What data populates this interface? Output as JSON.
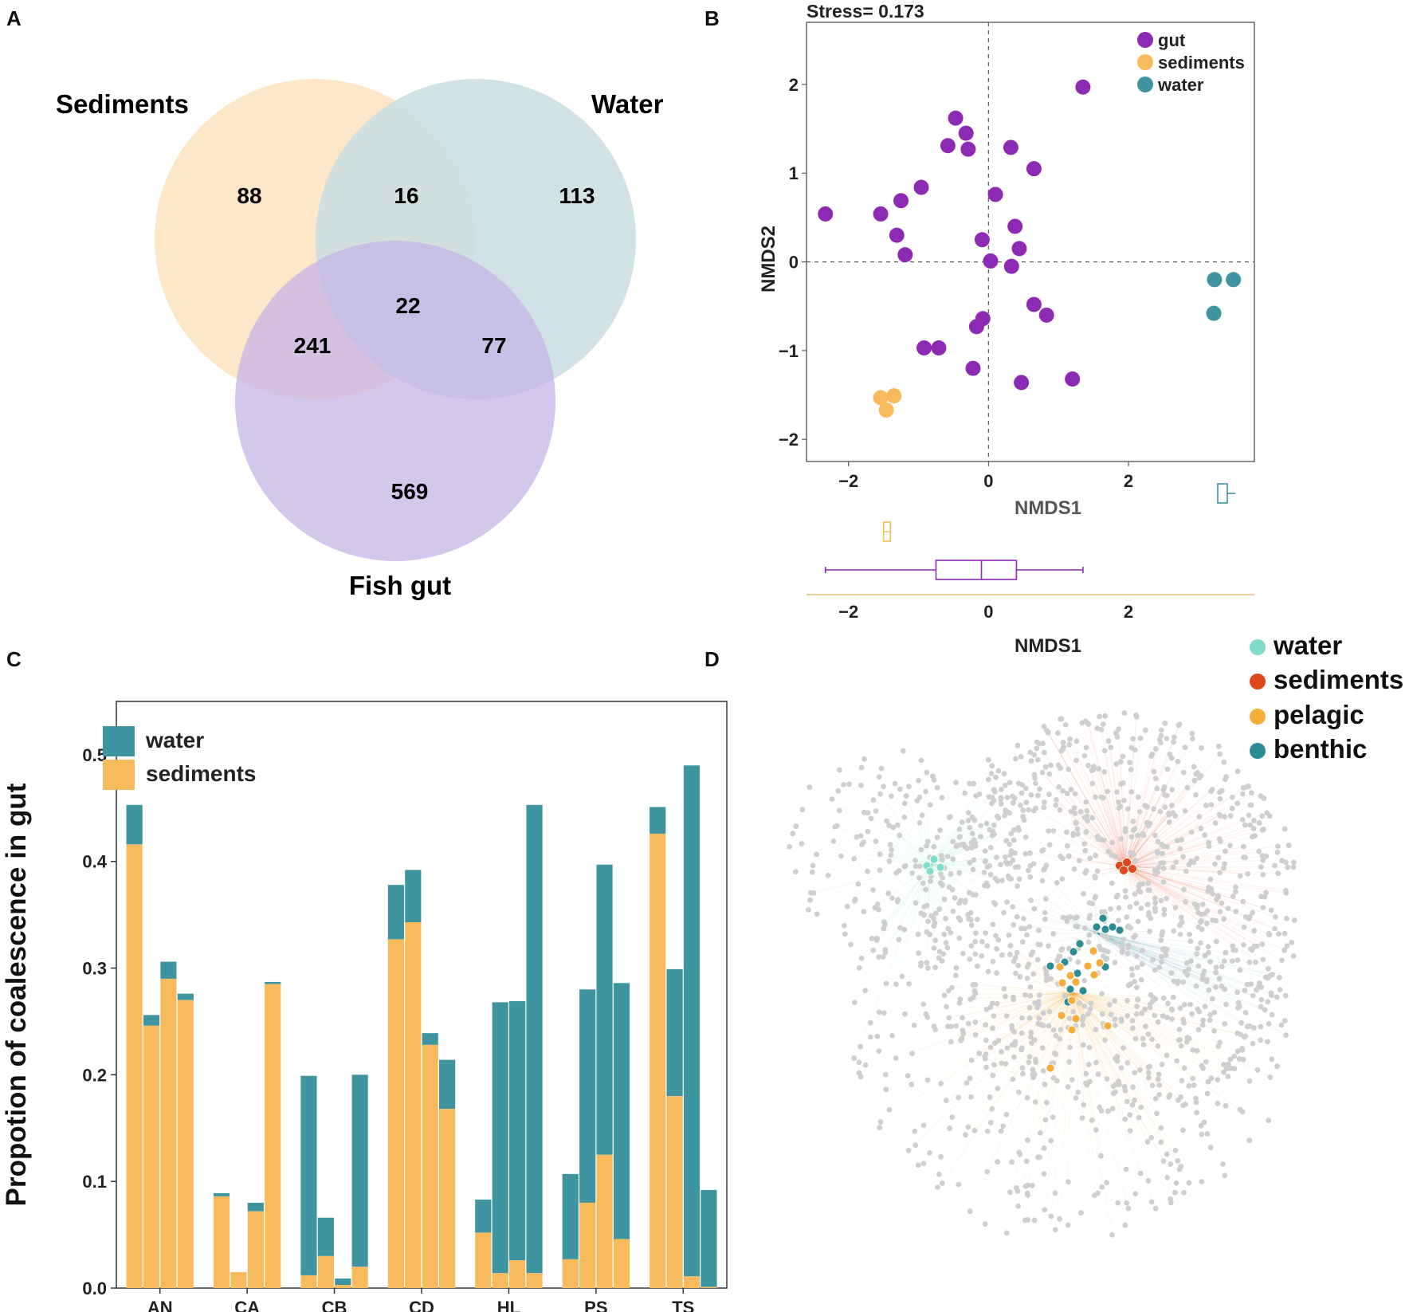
{
  "colors": {
    "sediments": "#f7bb5d",
    "water": "#3e959f",
    "gut": "#8d2ab3",
    "venn_sediments": "#fde3c0",
    "venn_water": "#c9dde3",
    "venn_gut": "#c4b4e6",
    "net_water": "#7fdccd",
    "net_sediments": "#e0471b",
    "net_pelagic": "#f5ad3b",
    "net_benthic": "#2b8c96",
    "node_grey": "#cfcfcf"
  },
  "panel_labels": {
    "a": "A",
    "b": "B",
    "c": "C",
    "d": "D"
  },
  "chart_data": [
    {
      "type": "venn",
      "panel": "A",
      "sets": [
        "Sediments",
        "Water",
        "Fish gut"
      ],
      "regions": [
        {
          "sets": [
            "Sediments"
          ],
          "value": 88
        },
        {
          "sets": [
            "Sediments",
            "Water"
          ],
          "value": 16
        },
        {
          "sets": [
            "Water"
          ],
          "value": 113
        },
        {
          "sets": [
            "Sediments",
            "Water",
            "Fish gut"
          ],
          "value": 22
        },
        {
          "sets": [
            "Sediments",
            "Fish gut"
          ],
          "value": 241
        },
        {
          "sets": [
            "Water",
            "Fish gut"
          ],
          "value": 77
        },
        {
          "sets": [
            "Fish gut"
          ],
          "value": 569
        }
      ]
    },
    {
      "type": "scatter",
      "panel": "B",
      "title": "Stress= 0.173",
      "xlabel": "NMDS1",
      "ylabel": "NMDS2",
      "xlim": [
        -2.6,
        3.8
      ],
      "ylim": [
        -2.25,
        2.7
      ],
      "xticks": [
        "−2",
        "0",
        "2"
      ],
      "yticks": [
        "2",
        "1",
        "0",
        "−1",
        "−2"
      ],
      "legend": [
        {
          "name": "gut",
          "color": "#8d2ab3"
        },
        {
          "name": "sediments",
          "color": "#f7bb5d"
        },
        {
          "name": "water",
          "color": "#3e959f"
        }
      ],
      "series": [
        {
          "name": "gut",
          "points": [
            [
              1.35,
              1.97
            ],
            [
              -0.47,
              1.62
            ],
            [
              -0.32,
              1.45
            ],
            [
              -0.58,
              1.31
            ],
            [
              -0.29,
              1.27
            ],
            [
              0.32,
              1.29
            ],
            [
              0.65,
              1.05
            ],
            [
              -0.96,
              0.84
            ],
            [
              -1.25,
              0.69
            ],
            [
              0.1,
              0.76
            ],
            [
              -2.33,
              0.54
            ],
            [
              -1.54,
              0.54
            ],
            [
              0.38,
              0.4
            ],
            [
              -1.31,
              0.3
            ],
            [
              -0.09,
              0.25
            ],
            [
              0.44,
              0.15
            ],
            [
              -1.19,
              0.08
            ],
            [
              0.03,
              0.01
            ],
            [
              0.33,
              -0.05
            ],
            [
              0.65,
              -0.48
            ],
            [
              0.83,
              -0.6
            ],
            [
              -0.08,
              -0.64
            ],
            [
              -0.17,
              -0.73
            ],
            [
              -0.92,
              -0.97
            ],
            [
              -0.71,
              -0.97
            ],
            [
              -0.22,
              -1.2
            ],
            [
              0.47,
              -1.36
            ],
            [
              1.2,
              -1.32
            ]
          ]
        },
        {
          "name": "sediments",
          "points": [
            [
              -1.54,
              -1.53
            ],
            [
              -1.35,
              -1.51
            ],
            [
              -1.46,
              -1.67
            ]
          ]
        },
        {
          "name": "water",
          "points": [
            [
              3.23,
              -0.2
            ],
            [
              3.5,
              -0.2
            ],
            [
              3.22,
              -0.58
            ]
          ]
        }
      ],
      "boxplots_x": [
        {
          "name": "gut",
          "min": -2.33,
          "q1": -0.75,
          "median": -0.1,
          "q3": 0.4,
          "max": 1.35
        },
        {
          "name": "sediments",
          "min": -1.54,
          "q1": -1.5,
          "median": -1.46,
          "q3": -1.4,
          "max": -1.35
        }
      ],
      "boxplots_y": [
        {
          "name": "water",
          "min": -0.58,
          "q1": -0.45,
          "median": -0.3,
          "q3": -0.2,
          "max": -0.2
        }
      ],
      "bottom_xticks": [
        "−2",
        "0",
        "2"
      ],
      "bottom_xlabel": "NMDS1"
    },
    {
      "type": "bar",
      "stacked": true,
      "panel": "C",
      "ylabel": "Propotion of coalescence in gut",
      "ylim": [
        0,
        0.55
      ],
      "yticks": [
        "0.0",
        "0.1",
        "0.2",
        "0.3",
        "0.4",
        "0.5"
      ],
      "categories": [
        "AN",
        "CA",
        "CB",
        "CD",
        "HL",
        "PS",
        "TS"
      ],
      "legend": [
        "water",
        "sediments"
      ],
      "groups": [
        {
          "name": "AN",
          "sediments": [
            0.416,
            0.246,
            0.29,
            0.27
          ],
          "total": [
            0.453,
            0.256,
            0.306,
            0.276
          ]
        },
        {
          "name": "CA",
          "sediments": [
            0.086,
            0.015,
            0.072,
            0.285
          ],
          "total": [
            0.089,
            0.015,
            0.08,
            0.287
          ]
        },
        {
          "name": "CB",
          "sediments": [
            0.012,
            0.03,
            0.003,
            0.02
          ],
          "total": [
            0.199,
            0.066,
            0.009,
            0.2
          ]
        },
        {
          "name": "CD",
          "sediments": [
            0.327,
            0.343,
            0.228,
            0.168
          ],
          "total": [
            0.378,
            0.392,
            0.239,
            0.214
          ]
        },
        {
          "name": "HL",
          "sediments": [
            0.052,
            0.014,
            0.026,
            0.014
          ],
          "total": [
            0.083,
            0.268,
            0.269,
            0.453
          ]
        },
        {
          "name": "PS",
          "sediments": [
            0.027,
            0.08,
            0.125,
            0.046
          ],
          "total": [
            0.107,
            0.28,
            0.397,
            0.286
          ]
        },
        {
          "name": "TS",
          "sediments": [
            0.426,
            0.18,
            0.011,
            0.001
          ],
          "total": [
            0.451,
            0.299,
            0.49,
            0.092
          ]
        }
      ]
    },
    {
      "type": "network",
      "panel": "D",
      "legend": [
        {
          "name": "water",
          "color": "#7fdccd"
        },
        {
          "name": "sediments",
          "color": "#e0471b"
        },
        {
          "name": "pelagic",
          "color": "#f5ad3b"
        },
        {
          "name": "benthic",
          "color": "#2b8c96"
        }
      ],
      "hubs": [
        {
          "name": "water",
          "count": 4
        },
        {
          "name": "sediments",
          "count": 4
        },
        {
          "name": "benthic",
          "count": 14
        },
        {
          "name": "pelagic",
          "count": 14
        }
      ]
    }
  ]
}
